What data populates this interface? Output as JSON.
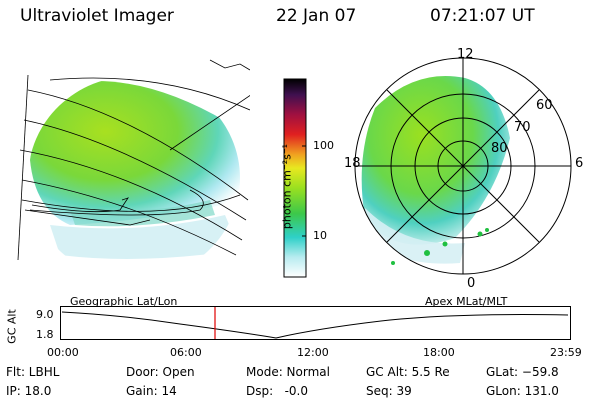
{
  "header": {
    "title": "Ultraviolet Imager",
    "date": "22 Jan 07",
    "time": "07:21:07 UT"
  },
  "colorbar": {
    "unit_label": "photon cm⁻²s⁻¹",
    "ticks": [
      "100",
      "10"
    ],
    "scale": "log"
  },
  "polar_plot": {
    "mlt_labels": [
      "12",
      "18",
      "6",
      "0"
    ],
    "mlat_labels": [
      "60",
      "70",
      "80"
    ]
  },
  "timeline": {
    "left_title": "Geographic Lat/Lon",
    "right_title": "Apex MLat/MLT",
    "y_axis_label": "GC Alt",
    "y_ticks": [
      "9.0",
      "1.8"
    ],
    "x_ticks": [
      "00:00",
      "06:00",
      "12:00",
      "18:00",
      "23:59"
    ],
    "marker_time": "07:21"
  },
  "info": {
    "row1": {
      "flt": "Flt: LBHL",
      "door": "Door: Open",
      "mode": "Mode: Normal",
      "gcalt": "GC Alt: 5.5 Re",
      "glat": "GLat: −59.8"
    },
    "row2": {
      "ip": "IP: 18.0",
      "gain": "Gain: 14",
      "dsp": "Dsp:   -0.0",
      "seq": "Seq: 39",
      "glon": "GLon: 131.0"
    }
  },
  "colors": {
    "marker": "#e00000",
    "lines": "#000000"
  }
}
